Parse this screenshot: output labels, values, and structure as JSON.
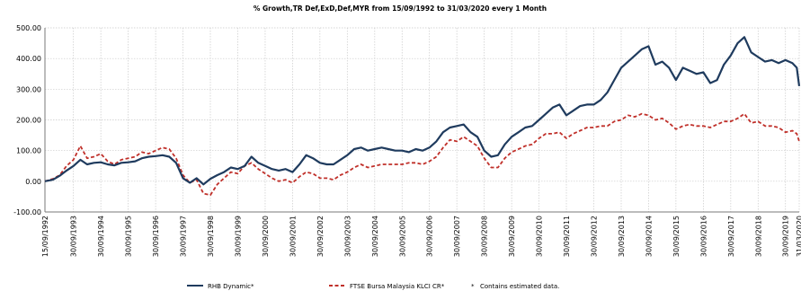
{
  "chart_data": {
    "type": "line",
    "title": "% Growth,TR Def,ExD,Def,MYR from 15/09/1992 to 31/03/2020 every 1 Month",
    "xlabel": "",
    "ylabel": "",
    "ylim": [
      -100,
      500
    ],
    "y_ticks": [
      -100,
      0,
      100,
      200,
      300,
      400,
      500
    ],
    "y_tick_labels": [
      "-100.00",
      "0.00",
      "100.00",
      "200.00",
      "300.00",
      "400.00",
      "500.00"
    ],
    "x_range": [
      "1992-09-15",
      "2020-03-31"
    ],
    "x_tick_labels": [
      "15/09/1992",
      "30/09/1993",
      "30/09/1994",
      "30/09/1995",
      "30/09/1996",
      "30/09/1997",
      "30/09/1998",
      "30/09/1999",
      "30/09/2000",
      "30/09/2001",
      "30/09/2002",
      "30/09/2003",
      "30/09/2004",
      "30/09/2005",
      "30/09/2006",
      "30/09/2007",
      "30/09/2008",
      "30/09/2009",
      "30/09/2010",
      "30/09/2011",
      "30/09/2012",
      "30/09/2013",
      "30/09/2014",
      "30/09/2015",
      "30/09/2016",
      "30/09/2017",
      "30/09/2018",
      "30/09/2019",
      "31/03/2020"
    ],
    "grid": true,
    "legend_position": "bottom",
    "legend_note": "Contains estimated data.",
    "series": [
      {
        "name": "RHB Dynamic*",
        "color": "#1f3b5e",
        "style": "solid",
        "points": [
          [
            "1992-09-15",
            0
          ],
          [
            "1992-12-31",
            5
          ],
          [
            "1993-03-31",
            18
          ],
          [
            "1993-06-30",
            35
          ],
          [
            "1993-09-30",
            50
          ],
          [
            "1993-12-31",
            70
          ],
          [
            "1994-03-31",
            55
          ],
          [
            "1994-06-30",
            60
          ],
          [
            "1994-09-30",
            62
          ],
          [
            "1994-12-31",
            55
          ],
          [
            "1995-03-31",
            52
          ],
          [
            "1995-06-30",
            60
          ],
          [
            "1995-09-30",
            62
          ],
          [
            "1995-12-31",
            65
          ],
          [
            "1996-03-31",
            75
          ],
          [
            "1996-06-30",
            80
          ],
          [
            "1996-09-30",
            82
          ],
          [
            "1996-12-31",
            85
          ],
          [
            "1997-03-31",
            80
          ],
          [
            "1997-06-30",
            60
          ],
          [
            "1997-09-30",
            10
          ],
          [
            "1997-12-31",
            -5
          ],
          [
            "1998-03-31",
            10
          ],
          [
            "1998-06-30",
            -10
          ],
          [
            "1998-09-30",
            8
          ],
          [
            "1998-12-31",
            20
          ],
          [
            "1999-03-31",
            30
          ],
          [
            "1999-06-30",
            45
          ],
          [
            "1999-09-30",
            40
          ],
          [
            "1999-12-31",
            50
          ],
          [
            "2000-03-31",
            80
          ],
          [
            "2000-06-30",
            60
          ],
          [
            "2000-09-30",
            50
          ],
          [
            "2000-12-31",
            40
          ],
          [
            "2001-03-31",
            35
          ],
          [
            "2001-06-30",
            40
          ],
          [
            "2001-09-30",
            30
          ],
          [
            "2001-12-31",
            55
          ],
          [
            "2002-03-31",
            85
          ],
          [
            "2002-06-30",
            75
          ],
          [
            "2002-09-30",
            60
          ],
          [
            "2002-12-31",
            55
          ],
          [
            "2003-03-31",
            55
          ],
          [
            "2003-06-30",
            70
          ],
          [
            "2003-09-30",
            85
          ],
          [
            "2003-12-31",
            105
          ],
          [
            "2004-03-31",
            110
          ],
          [
            "2004-06-30",
            100
          ],
          [
            "2004-09-30",
            105
          ],
          [
            "2004-12-31",
            110
          ],
          [
            "2005-03-31",
            105
          ],
          [
            "2005-06-30",
            100
          ],
          [
            "2005-09-30",
            100
          ],
          [
            "2005-12-31",
            95
          ],
          [
            "2006-03-31",
            105
          ],
          [
            "2006-06-30",
            100
          ],
          [
            "2006-09-30",
            110
          ],
          [
            "2006-12-31",
            130
          ],
          [
            "2007-03-31",
            160
          ],
          [
            "2007-06-30",
            175
          ],
          [
            "2007-09-30",
            180
          ],
          [
            "2007-12-31",
            185
          ],
          [
            "2008-03-31",
            160
          ],
          [
            "2008-06-30",
            145
          ],
          [
            "2008-09-30",
            100
          ],
          [
            "2008-12-31",
            80
          ],
          [
            "2009-03-31",
            85
          ],
          [
            "2009-06-30",
            120
          ],
          [
            "2009-09-30",
            145
          ],
          [
            "2009-12-31",
            160
          ],
          [
            "2010-03-31",
            175
          ],
          [
            "2010-06-30",
            180
          ],
          [
            "2010-09-30",
            200
          ],
          [
            "2010-12-31",
            220
          ],
          [
            "2011-03-31",
            240
          ],
          [
            "2011-06-30",
            250
          ],
          [
            "2011-09-30",
            215
          ],
          [
            "2011-12-31",
            230
          ],
          [
            "2012-03-31",
            245
          ],
          [
            "2012-06-30",
            250
          ],
          [
            "2012-09-30",
            250
          ],
          [
            "2012-12-31",
            265
          ],
          [
            "2013-03-31",
            290
          ],
          [
            "2013-06-30",
            330
          ],
          [
            "2013-09-30",
            370
          ],
          [
            "2013-12-31",
            390
          ],
          [
            "2014-03-31",
            410
          ],
          [
            "2014-06-30",
            430
          ],
          [
            "2014-09-30",
            440
          ],
          [
            "2014-12-31",
            380
          ],
          [
            "2015-03-31",
            390
          ],
          [
            "2015-06-30",
            370
          ],
          [
            "2015-09-30",
            330
          ],
          [
            "2015-12-31",
            370
          ],
          [
            "2016-03-31",
            360
          ],
          [
            "2016-06-30",
            350
          ],
          [
            "2016-09-30",
            355
          ],
          [
            "2016-12-31",
            320
          ],
          [
            "2017-03-31",
            330
          ],
          [
            "2017-06-30",
            380
          ],
          [
            "2017-09-30",
            410
          ],
          [
            "2017-12-31",
            450
          ],
          [
            "2018-03-31",
            470
          ],
          [
            "2018-06-30",
            420
          ],
          [
            "2018-09-30",
            405
          ],
          [
            "2018-12-31",
            390
          ],
          [
            "2019-03-31",
            395
          ],
          [
            "2019-06-30",
            385
          ],
          [
            "2019-09-30",
            395
          ],
          [
            "2019-12-31",
            385
          ],
          [
            "2020-02-28",
            370
          ],
          [
            "2020-03-31",
            310
          ]
        ]
      },
      {
        "name": "FTSE Bursa Malaysia KLCI CR*",
        "color": "#c0302a",
        "style": "dashed",
        "points": [
          [
            "1992-09-15",
            0
          ],
          [
            "1992-12-31",
            8
          ],
          [
            "1993-03-31",
            20
          ],
          [
            "1993-06-30",
            50
          ],
          [
            "1993-09-30",
            70
          ],
          [
            "1993-12-31",
            115
          ],
          [
            "1994-03-31",
            75
          ],
          [
            "1994-06-30",
            80
          ],
          [
            "1994-09-30",
            90
          ],
          [
            "1994-12-31",
            65
          ],
          [
            "1995-03-31",
            55
          ],
          [
            "1995-06-30",
            70
          ],
          [
            "1995-09-30",
            75
          ],
          [
            "1995-12-31",
            80
          ],
          [
            "1996-03-31",
            95
          ],
          [
            "1996-06-30",
            90
          ],
          [
            "1996-09-30",
            100
          ],
          [
            "1996-12-31",
            110
          ],
          [
            "1997-03-31",
            105
          ],
          [
            "1997-06-30",
            75
          ],
          [
            "1997-09-30",
            20
          ],
          [
            "1997-12-31",
            -5
          ],
          [
            "1998-03-31",
            5
          ],
          [
            "1998-06-30",
            -40
          ],
          [
            "1998-09-30",
            -45
          ],
          [
            "1998-12-31",
            -10
          ],
          [
            "1999-03-31",
            10
          ],
          [
            "1999-06-30",
            30
          ],
          [
            "1999-09-30",
            25
          ],
          [
            "1999-12-31",
            50
          ],
          [
            "2000-03-31",
            60
          ],
          [
            "2000-06-30",
            40
          ],
          [
            "2000-09-30",
            25
          ],
          [
            "2000-12-31",
            10
          ],
          [
            "2001-03-31",
            0
          ],
          [
            "2001-06-30",
            5
          ],
          [
            "2001-09-30",
            -5
          ],
          [
            "2001-12-31",
            15
          ],
          [
            "2002-03-31",
            30
          ],
          [
            "2002-06-30",
            25
          ],
          [
            "2002-09-30",
            10
          ],
          [
            "2002-12-31",
            10
          ],
          [
            "2003-03-31",
            5
          ],
          [
            "2003-06-30",
            20
          ],
          [
            "2003-09-30",
            30
          ],
          [
            "2003-12-31",
            45
          ],
          [
            "2004-03-31",
            55
          ],
          [
            "2004-06-30",
            45
          ],
          [
            "2004-09-30",
            50
          ],
          [
            "2004-12-31",
            55
          ],
          [
            "2005-03-31",
            55
          ],
          [
            "2005-06-30",
            55
          ],
          [
            "2005-09-30",
            55
          ],
          [
            "2005-12-31",
            60
          ],
          [
            "2006-03-31",
            60
          ],
          [
            "2006-06-30",
            55
          ],
          [
            "2006-09-30",
            65
          ],
          [
            "2006-12-31",
            80
          ],
          [
            "2007-03-31",
            110
          ],
          [
            "2007-06-30",
            135
          ],
          [
            "2007-09-30",
            130
          ],
          [
            "2007-12-31",
            145
          ],
          [
            "2008-03-31",
            130
          ],
          [
            "2008-06-30",
            115
          ],
          [
            "2008-09-30",
            75
          ],
          [
            "2008-12-31",
            45
          ],
          [
            "2009-03-31",
            45
          ],
          [
            "2009-06-30",
            75
          ],
          [
            "2009-09-30",
            95
          ],
          [
            "2009-12-31",
            105
          ],
          [
            "2010-03-31",
            115
          ],
          [
            "2010-06-30",
            120
          ],
          [
            "2010-09-30",
            140
          ],
          [
            "2010-12-31",
            155
          ],
          [
            "2011-03-31",
            155
          ],
          [
            "2011-06-30",
            160
          ],
          [
            "2011-09-30",
            140
          ],
          [
            "2011-12-31",
            155
          ],
          [
            "2012-03-31",
            165
          ],
          [
            "2012-06-30",
            175
          ],
          [
            "2012-09-30",
            175
          ],
          [
            "2012-12-31",
            180
          ],
          [
            "2013-03-31",
            180
          ],
          [
            "2013-06-30",
            195
          ],
          [
            "2013-09-30",
            200
          ],
          [
            "2013-12-31",
            215
          ],
          [
            "2014-03-31",
            210
          ],
          [
            "2014-06-30",
            220
          ],
          [
            "2014-09-30",
            215
          ],
          [
            "2014-12-31",
            200
          ],
          [
            "2015-03-31",
            205
          ],
          [
            "2015-06-30",
            190
          ],
          [
            "2015-09-30",
            170
          ],
          [
            "2015-12-31",
            180
          ],
          [
            "2016-03-31",
            185
          ],
          [
            "2016-06-30",
            180
          ],
          [
            "2016-09-30",
            180
          ],
          [
            "2016-12-31",
            175
          ],
          [
            "2017-03-31",
            185
          ],
          [
            "2017-06-30",
            195
          ],
          [
            "2017-09-30",
            195
          ],
          [
            "2017-12-31",
            205
          ],
          [
            "2018-03-31",
            220
          ],
          [
            "2018-06-30",
            190
          ],
          [
            "2018-09-30",
            195
          ],
          [
            "2018-12-31",
            180
          ],
          [
            "2019-03-31",
            180
          ],
          [
            "2019-06-30",
            175
          ],
          [
            "2019-09-30",
            160
          ],
          [
            "2019-12-31",
            165
          ],
          [
            "2020-02-28",
            155
          ],
          [
            "2020-03-31",
            130
          ]
        ]
      }
    ]
  }
}
